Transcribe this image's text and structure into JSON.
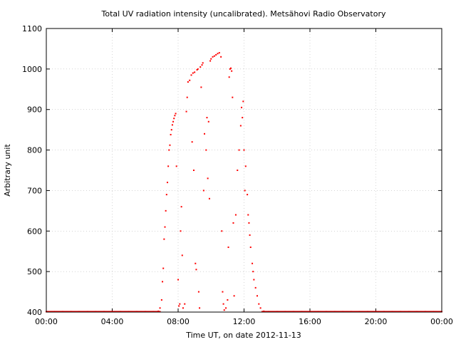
{
  "chart_data": {
    "type": "scatter",
    "title": "Total UV radiation intensity (uncalibrated). Metsähovi Radio Observatory",
    "xlabel": "Time UT, on date 2012-11-13",
    "ylabel": "Arbitrary unit",
    "xlim": [
      0,
      24
    ],
    "ylim": [
      400,
      1100
    ],
    "x_ticks": [
      0,
      4,
      8,
      12,
      16,
      20,
      24
    ],
    "x_tick_labels": [
      "00:00",
      "04:00",
      "08:00",
      "12:00",
      "16:00",
      "20:00",
      "00:00"
    ],
    "y_ticks": [
      400,
      500,
      600,
      700,
      800,
      900,
      1000,
      1100
    ],
    "y_tick_labels": [
      "400",
      "500",
      "600",
      "700",
      "800",
      "900",
      "1000",
      "1100"
    ],
    "grid": true,
    "marker_color": "#ff0000",
    "baseline_value": 401,
    "series": [
      {
        "points": [
          [
            0.0,
            401
          ],
          [
            0.5,
            401
          ],
          [
            1.0,
            401
          ],
          [
            1.5,
            401
          ],
          [
            2.0,
            401
          ],
          [
            2.5,
            401
          ],
          [
            3.0,
            401
          ],
          [
            3.5,
            401
          ],
          [
            4.0,
            401
          ],
          [
            4.5,
            401
          ],
          [
            5.0,
            401
          ],
          [
            5.5,
            401
          ],
          [
            6.0,
            401
          ],
          [
            6.5,
            401
          ],
          [
            6.8,
            402
          ],
          [
            6.9,
            410
          ],
          [
            7.0,
            430
          ],
          [
            7.05,
            475
          ],
          [
            7.1,
            508
          ],
          [
            7.15,
            580
          ],
          [
            7.2,
            610
          ],
          [
            7.25,
            650
          ],
          [
            7.3,
            690
          ],
          [
            7.35,
            720
          ],
          [
            7.4,
            760
          ],
          [
            7.45,
            800
          ],
          [
            7.5,
            812
          ],
          [
            7.55,
            838
          ],
          [
            7.6,
            850
          ],
          [
            7.65,
            862
          ],
          [
            7.7,
            870
          ],
          [
            7.75,
            878
          ],
          [
            7.8,
            885
          ],
          [
            7.85,
            890
          ],
          [
            7.9,
            760
          ],
          [
            8.0,
            480
          ],
          [
            8.05,
            415
          ],
          [
            8.1,
            420
          ],
          [
            8.15,
            600
          ],
          [
            8.2,
            660
          ],
          [
            8.25,
            540
          ],
          [
            8.3,
            410
          ],
          [
            8.4,
            420
          ],
          [
            8.5,
            895
          ],
          [
            8.55,
            930
          ],
          [
            8.6,
            968
          ],
          [
            8.7,
            972
          ],
          [
            8.8,
            985
          ],
          [
            8.85,
            820
          ],
          [
            8.9,
            990
          ],
          [
            8.95,
            750
          ],
          [
            9.0,
            992
          ],
          [
            9.05,
            520
          ],
          [
            9.1,
            505
          ],
          [
            9.15,
            998
          ],
          [
            9.2,
            1000
          ],
          [
            9.25,
            450
          ],
          [
            9.3,
            410
          ],
          [
            9.35,
            1005
          ],
          [
            9.4,
            955
          ],
          [
            9.45,
            1010
          ],
          [
            9.5,
            1015
          ],
          [
            9.55,
            700
          ],
          [
            9.6,
            840
          ],
          [
            9.7,
            800
          ],
          [
            9.75,
            880
          ],
          [
            9.8,
            730
          ],
          [
            9.85,
            870
          ],
          [
            9.9,
            680
          ],
          [
            9.95,
            1020
          ],
          [
            10.0,
            1025
          ],
          [
            10.1,
            1030
          ],
          [
            10.2,
            1032
          ],
          [
            10.3,
            1035
          ],
          [
            10.4,
            1038
          ],
          [
            10.5,
            1040
          ],
          [
            10.6,
            1030
          ],
          [
            10.65,
            600
          ],
          [
            10.7,
            450
          ],
          [
            10.75,
            420
          ],
          [
            10.8,
            405
          ],
          [
            10.9,
            410
          ],
          [
            11.0,
            430
          ],
          [
            11.05,
            560
          ],
          [
            11.1,
            980
          ],
          [
            11.15,
            1000
          ],
          [
            11.2,
            1002
          ],
          [
            11.25,
            995
          ],
          [
            11.3,
            930
          ],
          [
            11.35,
            620
          ],
          [
            11.4,
            440
          ],
          [
            11.5,
            640
          ],
          [
            11.6,
            750
          ],
          [
            11.7,
            800
          ],
          [
            11.8,
            860
          ],
          [
            11.85,
            905
          ],
          [
            11.9,
            880
          ],
          [
            11.95,
            920
          ],
          [
            12.0,
            800
          ],
          [
            12.05,
            700
          ],
          [
            12.1,
            760
          ],
          [
            12.2,
            690
          ],
          [
            12.25,
            640
          ],
          [
            12.3,
            620
          ],
          [
            12.35,
            590
          ],
          [
            12.4,
            560
          ],
          [
            12.5,
            520
          ],
          [
            12.55,
            500
          ],
          [
            12.6,
            480
          ],
          [
            12.7,
            460
          ],
          [
            12.8,
            440
          ],
          [
            12.9,
            420
          ],
          [
            13.0,
            410
          ],
          [
            13.2,
            402
          ],
          [
            13.5,
            401
          ],
          [
            14.0,
            401
          ],
          [
            14.5,
            401
          ],
          [
            15.0,
            401
          ],
          [
            15.5,
            401
          ],
          [
            16.0,
            401
          ],
          [
            16.5,
            401
          ],
          [
            17.0,
            401
          ],
          [
            17.5,
            401
          ],
          [
            18.0,
            401
          ],
          [
            18.5,
            401
          ],
          [
            19.0,
            401
          ],
          [
            19.5,
            401
          ],
          [
            20.0,
            401
          ],
          [
            20.5,
            401
          ],
          [
            21.0,
            401
          ],
          [
            21.5,
            401
          ],
          [
            22.0,
            401
          ],
          [
            22.5,
            401
          ],
          [
            23.0,
            401
          ],
          [
            23.5,
            401
          ],
          [
            24.0,
            401
          ]
        ]
      }
    ]
  }
}
